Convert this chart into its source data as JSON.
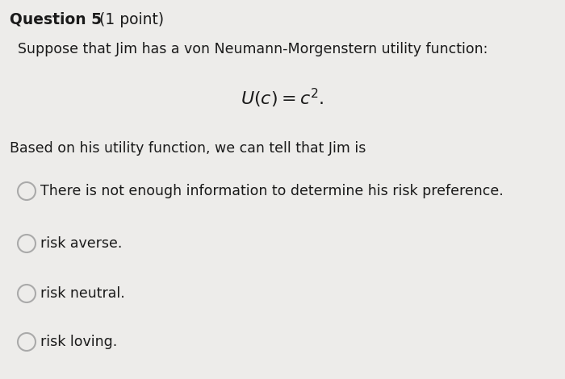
{
  "background_color": "#edecea",
  "title_bold": "Question 5",
  "title_normal": " (1 point)",
  "title_fontsize": 13.5,
  "line1": "Suppose that Jim has a von Neumann-Morgenstern utility function:",
  "line1_fontsize": 12.5,
  "formula": "$U(c) = c^2.$",
  "formula_fontsize": 16,
  "line2": "Based on his utility function, we can tell that Jim is",
  "line2_fontsize": 12.5,
  "options": [
    "There is not enough information to determine his risk preference.",
    "risk averse.",
    "risk neutral.",
    "risk loving."
  ],
  "options_fontsize": 12.5,
  "circle_color": "#aaaaaa",
  "text_color": "#1a1a1a"
}
